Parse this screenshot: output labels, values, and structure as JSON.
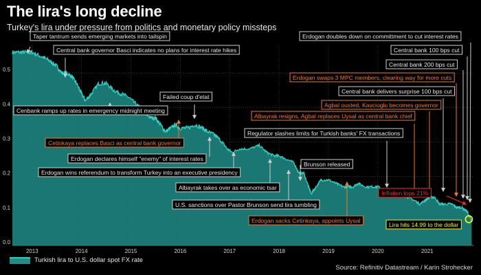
{
  "title": "The lira's long decline",
  "subtitle": "Turkey's lira under pressure from politics and monetary policy missteps",
  "source": "Source: Refinitiv Datastream / Karin Strohecker",
  "legend_label": "Turkish lira to U.S. dollar spot FX rate",
  "colors": {
    "background": "#000000",
    "line": "#2fd0c4",
    "area": "#1f8c86",
    "grid": "#555555",
    "annotation_gray": "#cfcfcf",
    "annotation_orange": "#f07a2e",
    "annotation_red": "#ff2a2a",
    "highlight_yellow": "#f5f500"
  },
  "chart_data": {
    "type": "area",
    "title": "The lira's long decline",
    "xlabel": "",
    "ylabel": "",
    "x_ticks": [
      "2013",
      "2014",
      "2015",
      "2016",
      "2017",
      "2018",
      "2019",
      "2020",
      "2021"
    ],
    "y_ticks": [
      "0.0",
      "0.1",
      "0.2",
      "0.3",
      "0.4",
      "0.5"
    ],
    "xlim": [
      2012.6,
      2021.95
    ],
    "ylim": [
      0,
      0.58
    ],
    "grid": true,
    "legend_position": "bottom-left",
    "series": [
      {
        "name": "Turkish lira to U.S. dollar spot FX rate",
        "x": [
          2012.6,
          2012.75,
          2012.9,
          2013.0,
          2013.15,
          2013.3,
          2013.4,
          2013.5,
          2013.6,
          2013.7,
          2013.8,
          2013.9,
          2014.0,
          2014.08,
          2014.2,
          2014.35,
          2014.5,
          2014.65,
          2014.8,
          2014.95,
          2015.1,
          2015.25,
          2015.4,
          2015.5,
          2015.6,
          2015.7,
          2015.8,
          2015.9,
          2016.0,
          2016.15,
          2016.3,
          2016.45,
          2016.55,
          2016.7,
          2016.85,
          2016.95,
          2017.05,
          2017.2,
          2017.4,
          2017.6,
          2017.75,
          2017.9,
          2018.0,
          2018.15,
          2018.3,
          2018.4,
          2018.5,
          2018.6,
          2018.65,
          2018.75,
          2018.85,
          2019.0,
          2019.15,
          2019.3,
          2019.4,
          2019.5,
          2019.6,
          2019.75,
          2019.9,
          2020.0,
          2020.15,
          2020.3,
          2020.45,
          2020.6,
          2020.75,
          2020.85,
          2020.95,
          2021.05,
          2021.15,
          2021.25,
          2021.35,
          2021.5,
          2021.6,
          2021.7,
          2021.8,
          2021.9
        ],
        "values": [
          0.56,
          0.56,
          0.56,
          0.56,
          0.55,
          0.54,
          0.53,
          0.52,
          0.5,
          0.5,
          0.49,
          0.47,
          0.44,
          0.42,
          0.44,
          0.47,
          0.47,
          0.45,
          0.44,
          0.43,
          0.41,
          0.39,
          0.37,
          0.37,
          0.35,
          0.33,
          0.34,
          0.35,
          0.34,
          0.34,
          0.35,
          0.34,
          0.33,
          0.32,
          0.3,
          0.28,
          0.27,
          0.28,
          0.28,
          0.29,
          0.27,
          0.26,
          0.26,
          0.25,
          0.24,
          0.21,
          0.21,
          0.17,
          0.15,
          0.17,
          0.19,
          0.19,
          0.18,
          0.17,
          0.17,
          0.17,
          0.18,
          0.17,
          0.17,
          0.17,
          0.16,
          0.15,
          0.15,
          0.14,
          0.13,
          0.12,
          0.13,
          0.14,
          0.14,
          0.12,
          0.12,
          0.12,
          0.11,
          0.11,
          0.1,
          0.07
        ]
      }
    ],
    "annotations": [
      {
        "text": "Taper tantrum sends emerging markets into tailspin",
        "style": "gray"
      },
      {
        "text": "Central bank governor Basci indicates no plans for interest rate hikes",
        "style": "gray"
      },
      {
        "text": "Cenbank ramps up rates in emergency midnight meeting",
        "style": "gray"
      },
      {
        "text": "Cetinkaya replaces Basci as central bank governor",
        "style": "orange"
      },
      {
        "text": "Erdogan declares himself \"enemy\" of interest rates",
        "style": "gray"
      },
      {
        "text": "Erdogan wins referendum to transform Turkey into an executive presidency",
        "style": "gray"
      },
      {
        "text": "Failed coup d'etat",
        "style": "gray"
      },
      {
        "text": "Albayrak takes over as economic tsar",
        "style": "gray"
      },
      {
        "text": "U.S. sanctions over Pastor Brunson send lira tumbling",
        "style": "gray"
      },
      {
        "text": "Erdogan sacks Cetinkaya, appoints Uysal",
        "style": "orange"
      },
      {
        "text": "Brunson released",
        "style": "gray"
      },
      {
        "text": "Regulator slashes limits for Turkish banks' FX transactions",
        "style": "gray"
      },
      {
        "text": "Albayrak resigns, Agbal replaces Uysal as central bank chief",
        "style": "orange"
      },
      {
        "text": "Agbal ousted, Kavcioglu becomes governor",
        "style": "orange"
      },
      {
        "text": "Central bank delivers surprise 100 bps cut",
        "style": "gray"
      },
      {
        "text": "Erdogan swaps 3 MPC members, clearing way for more cuts",
        "style": "orange"
      },
      {
        "text": "Central bank 200 bps cut",
        "style": "gray"
      },
      {
        "text": "Central bank 100 bps cut",
        "style": "gray"
      },
      {
        "text": "Erdogan doubles down on committment to cut interest rates",
        "style": "gray"
      },
      {
        "text": "Inflation tops 21%",
        "style": "red"
      },
      {
        "text": "Lira hits 14.99 to the dollar",
        "style": "yellow"
      }
    ]
  }
}
